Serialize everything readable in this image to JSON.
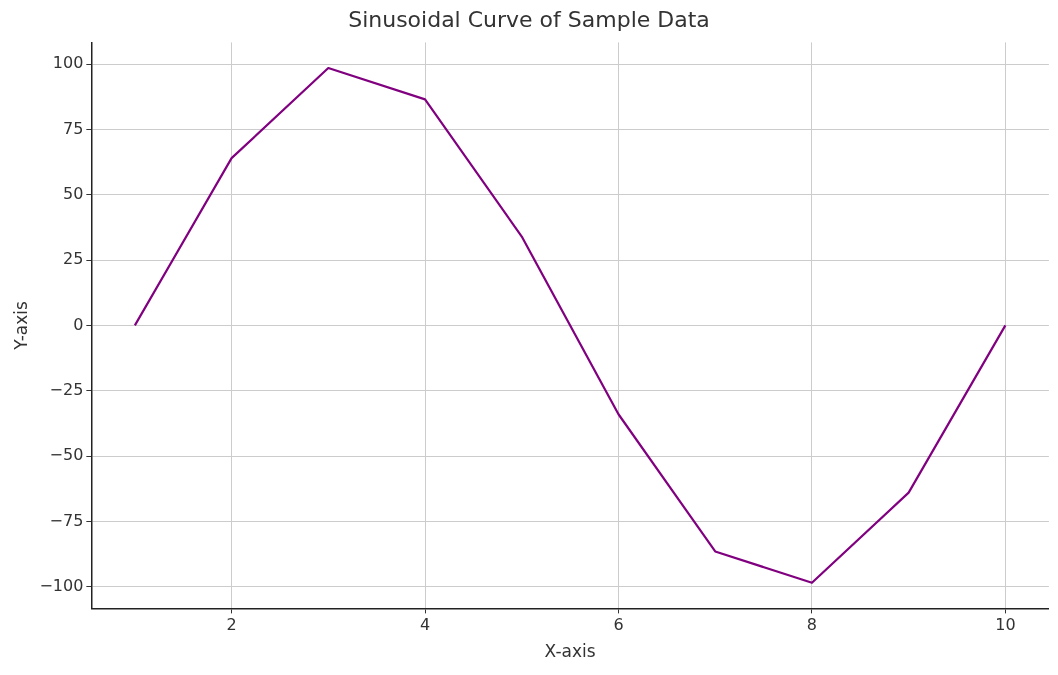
{
  "chart_data": {
    "type": "line",
    "title": "Sinusoidal Curve of Sample Data",
    "xlabel": "X-axis",
    "ylabel": "Y-axis",
    "x": [
      1,
      2,
      3,
      4,
      5,
      6,
      7,
      8,
      9,
      10
    ],
    "series": [
      {
        "color": "#800080",
        "values": [
          0,
          64,
          98.5,
          86.5,
          34,
          -34,
          -86.5,
          -98.5,
          -64,
          0
        ]
      }
    ],
    "xlim": [
      0.55,
      10.45
    ],
    "xticks": [
      2,
      4,
      6,
      8,
      10
    ],
    "ylim": [
      -108.3,
      108.3
    ],
    "yticks": [
      -100,
      -75,
      -50,
      -25,
      0,
      25,
      50,
      75,
      100
    ],
    "grid": true,
    "legend": false,
    "marker": "none",
    "line_style": "solid"
  }
}
